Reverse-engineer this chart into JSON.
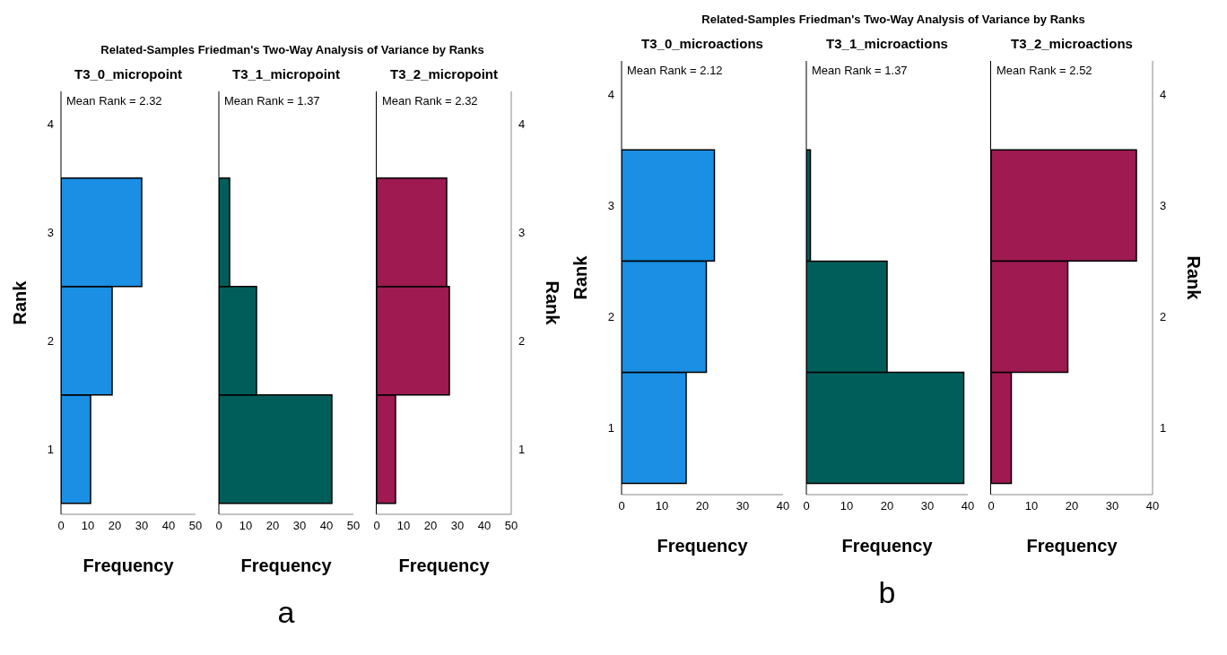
{
  "chart_data": [
    {
      "type": "histogram",
      "orientation": "horizontal",
      "title": "Related-Samples Friedman's Two-Way Analysis of Variance by Ranks",
      "subtitle": "T3_0_micropoint",
      "xlabel": "Frequency",
      "ylabel": "Rank",
      "bins": [
        0.5,
        1.5,
        2.5,
        3.5
      ],
      "values": [
        11,
        19,
        30
      ],
      "color": "#1a8fe3",
      "xlim": [
        0,
        50
      ],
      "xticks": [
        0,
        10,
        20,
        30,
        40,
        50
      ],
      "ylim": [
        0.4,
        4.3
      ],
      "yticks": [
        1,
        2,
        3,
        4
      ],
      "annotations": [
        "Mean Rank = 2.32"
      ]
    },
    {
      "type": "histogram",
      "orientation": "horizontal",
      "subtitle": "T3_1_micropoint",
      "xlabel": "Frequency",
      "bins": [
        0.5,
        1.5,
        2.5,
        3.5
      ],
      "values": [
        42,
        14,
        4
      ],
      "color": "#005e5a",
      "xlim": [
        0,
        50
      ],
      "xticks": [
        0,
        10,
        20,
        30,
        40,
        50
      ],
      "ylim": [
        0.4,
        4.3
      ],
      "yticks": [
        1,
        2,
        3,
        4
      ],
      "tick_labels": "x",
      "annotations": [
        "Mean Rank = 1.37",
        "a"
      ]
    },
    {
      "type": "histogram",
      "orientation": "horizontal",
      "subtitle": "T3_2_micropoint",
      "xlabel": "Frequency",
      "ylabel": "Rank",
      "bins": [
        0.5,
        1.5,
        2.5,
        3.5
      ],
      "values": [
        7,
        27,
        26
      ],
      "color": "#9e1a50",
      "xlim": [
        0,
        50
      ],
      "xticks": [
        0,
        10,
        20,
        30,
        40,
        50
      ],
      "ylim": [
        0.4,
        4.3
      ],
      "yticks": [
        1,
        2,
        3,
        4
      ],
      "annotations": [
        "Mean Rank = 2.32"
      ]
    },
    {
      "type": "histogram",
      "orientation": "horizontal",
      "title": "Related-Samples Friedman's Two-Way Analysis of Variance by Ranks",
      "subtitle": "T3_0_microactions",
      "xlabel": "Frequency",
      "ylabel": "Rank",
      "bins": [
        0.5,
        1.5,
        2.5,
        3.5
      ],
      "values": [
        16,
        21,
        23
      ],
      "color": "#1a8fe3",
      "xlim": [
        0,
        40
      ],
      "xticks": [
        0,
        10,
        20,
        30,
        40
      ],
      "ylim": [
        0.4,
        4.3
      ],
      "yticks": [
        1,
        2,
        3,
        4
      ],
      "annotations": [
        "Mean Rank = 2.12"
      ]
    },
    {
      "type": "histogram",
      "orientation": "horizontal",
      "subtitle": "T3_1_microactions",
      "xlabel": "Frequency",
      "bins": [
        0.5,
        1.5,
        2.5,
        3.5
      ],
      "values": [
        39,
        20,
        1
      ],
      "color": "#005e5a",
      "xlim": [
        0,
        40
      ],
      "xticks": [
        0,
        10,
        20,
        30,
        40
      ],
      "ylim": [
        0.4,
        4.3
      ],
      "yticks": [
        1,
        2,
        3,
        4
      ],
      "tick_labels": "x",
      "annotations": [
        "Mean Rank = 1.37",
        "b"
      ]
    },
    {
      "type": "histogram",
      "orientation": "horizontal",
      "subtitle": "T3_2_microactions",
      "xlabel": "Frequency",
      "ylabel": "Rank",
      "bins": [
        0.5,
        1.5,
        2.5,
        3.5
      ],
      "values": [
        5,
        19,
        36
      ],
      "color": "#9e1a50",
      "xlim": [
        0,
        40
      ],
      "xticks": [
        0,
        10,
        20,
        30,
        40
      ],
      "ylim": [
        0.4,
        4.3
      ],
      "yticks": [
        1,
        2,
        3,
        4
      ],
      "annotations": [
        "Mean Rank = 2.52"
      ]
    }
  ]
}
